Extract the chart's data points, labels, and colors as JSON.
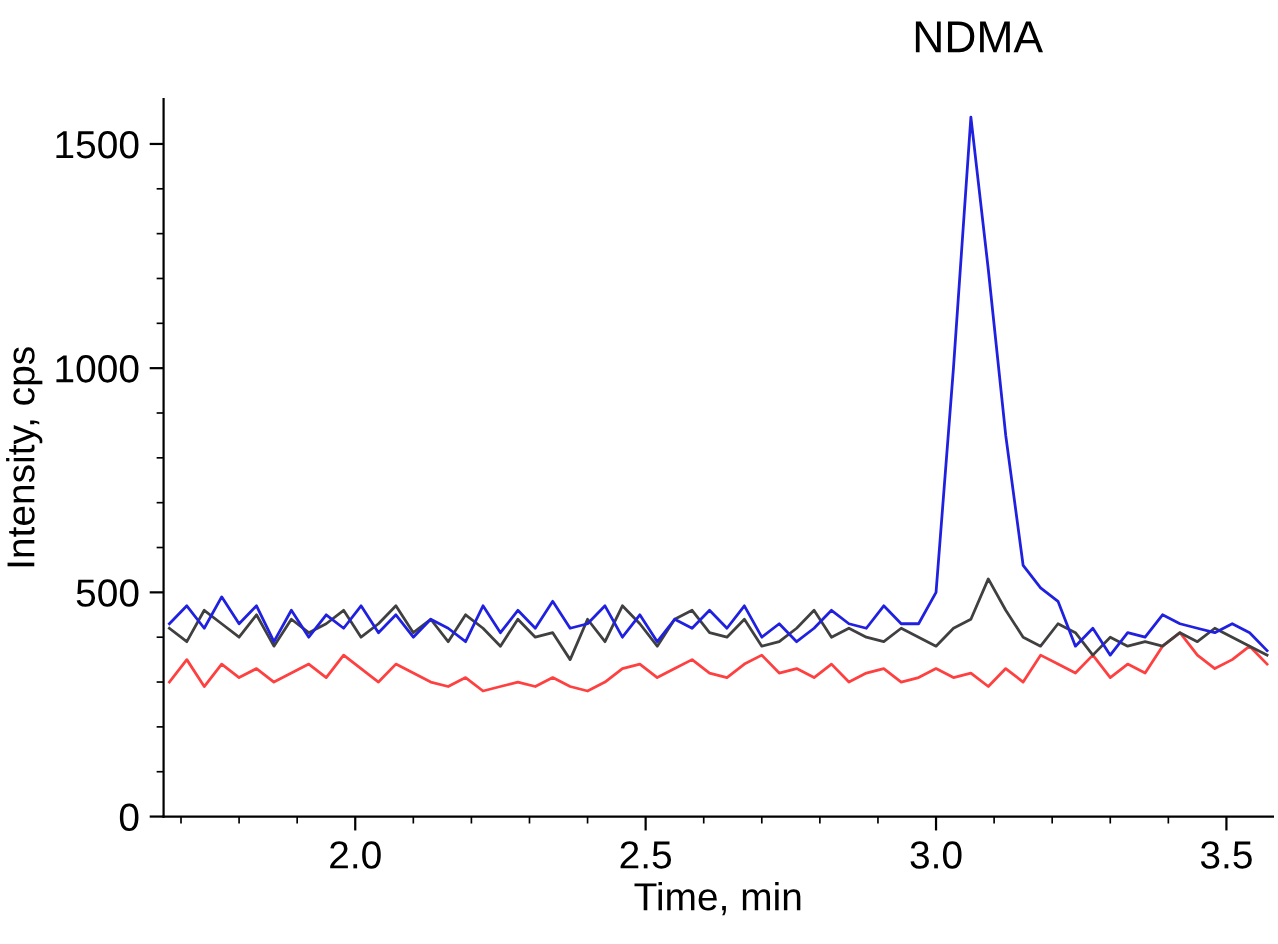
{
  "chart_data": {
    "type": "line",
    "xlabel": "Time, min",
    "ylabel": "Intensity, cps",
    "annotations": [
      "NDMA"
    ],
    "xlim": [
      1.67,
      3.58
    ],
    "ylim": [
      0,
      1600
    ],
    "xticks": [
      {
        "value": 1.7,
        "label": null
      },
      {
        "value": 1.8,
        "label": null
      },
      {
        "value": 1.9,
        "label": null
      },
      {
        "value": 2.0,
        "label": "2.0"
      },
      {
        "value": 2.1,
        "label": null
      },
      {
        "value": 2.2,
        "label": null
      },
      {
        "value": 2.3,
        "label": null
      },
      {
        "value": 2.4,
        "label": null
      },
      {
        "value": 2.5,
        "label": "2.5"
      },
      {
        "value": 2.6,
        "label": null
      },
      {
        "value": 2.7,
        "label": null
      },
      {
        "value": 2.8,
        "label": null
      },
      {
        "value": 2.9,
        "label": null
      },
      {
        "value": 3.0,
        "label": "3.0"
      },
      {
        "value": 3.1,
        "label": null
      },
      {
        "value": 3.2,
        "label": null
      },
      {
        "value": 3.3,
        "label": null
      },
      {
        "value": 3.4,
        "label": null
      },
      {
        "value": 3.5,
        "label": "3.5"
      }
    ],
    "yticks": [
      0,
      {
        "value": 100,
        "label": null
      },
      {
        "value": 200,
        "label": null
      },
      {
        "value": 300,
        "label": null
      },
      {
        "value": 400,
        "label": null
      },
      500,
      {
        "value": 600,
        "label": null
      },
      {
        "value": 700,
        "label": null
      },
      {
        "value": 800,
        "label": null
      },
      {
        "value": 900,
        "label": null
      },
      1000,
      {
        "value": 1100,
        "label": null
      },
      {
        "value": 1200,
        "label": null
      },
      {
        "value": 1300,
        "label": null
      },
      {
        "value": 1400,
        "label": null
      },
      1500
    ],
    "grid": false,
    "marker": "none",
    "line_style": "solid",
    "x": [
      1.68,
      1.71,
      1.74,
      1.77,
      1.8,
      1.83,
      1.86,
      1.89,
      1.92,
      1.95,
      1.98,
      2.01,
      2.04,
      2.07,
      2.1,
      2.13,
      2.16,
      2.19,
      2.22,
      2.25,
      2.28,
      2.31,
      2.34,
      2.37,
      2.4,
      2.43,
      2.46,
      2.49,
      2.52,
      2.55,
      2.58,
      2.61,
      2.64,
      2.67,
      2.7,
      2.73,
      2.76,
      2.79,
      2.82,
      2.85,
      2.88,
      2.91,
      2.94,
      2.97,
      3.0,
      3.03,
      3.06,
      3.09,
      3.12,
      3.15,
      3.18,
      3.21,
      3.24,
      3.27,
      3.3,
      3.33,
      3.36,
      3.39,
      3.42,
      3.45,
      3.48,
      3.51,
      3.54,
      3.57
    ],
    "series": [
      {
        "color": "#ff4040",
        "values": [
          300,
          350,
          290,
          340,
          310,
          330,
          300,
          320,
          340,
          310,
          360,
          330,
          300,
          340,
          320,
          300,
          290,
          310,
          280,
          290,
          300,
          290,
          310,
          290,
          280,
          300,
          330,
          340,
          310,
          330,
          350,
          320,
          310,
          340,
          360,
          320,
          330,
          310,
          340,
          300,
          320,
          330,
          300,
          310,
          330,
          310,
          320,
          290,
          330,
          300,
          360,
          340,
          320,
          360,
          310,
          340,
          320,
          380,
          410,
          360,
          330,
          350,
          380,
          340
        ]
      },
      {
        "color": "#404040",
        "values": [
          420,
          390,
          460,
          430,
          400,
          450,
          380,
          440,
          410,
          430,
          460,
          400,
          430,
          470,
          410,
          440,
          390,
          450,
          420,
          380,
          440,
          400,
          410,
          350,
          440,
          390,
          470,
          430,
          380,
          440,
          460,
          410,
          400,
          440,
          380,
          390,
          420,
          460,
          400,
          420,
          400,
          390,
          420,
          400,
          380,
          420,
          440,
          530,
          460,
          400,
          380,
          430,
          410,
          360,
          400,
          380,
          390,
          380,
          410,
          390,
          420,
          400,
          380,
          360
        ]
      },
      {
        "color": "#2020e0",
        "values": [
          430,
          470,
          420,
          490,
          430,
          470,
          390,
          460,
          400,
          450,
          420,
          470,
          410,
          450,
          400,
          440,
          420,
          390,
          470,
          410,
          460,
          420,
          480,
          420,
          430,
          470,
          400,
          450,
          390,
          440,
          420,
          460,
          420,
          470,
          400,
          430,
          390,
          420,
          460,
          430,
          420,
          470,
          430,
          430,
          500,
          1000,
          1560,
          1220,
          850,
          560,
          510,
          480,
          380,
          420,
          360,
          410,
          400,
          450,
          430,
          420,
          410,
          430,
          410,
          370
        ]
      }
    ]
  }
}
